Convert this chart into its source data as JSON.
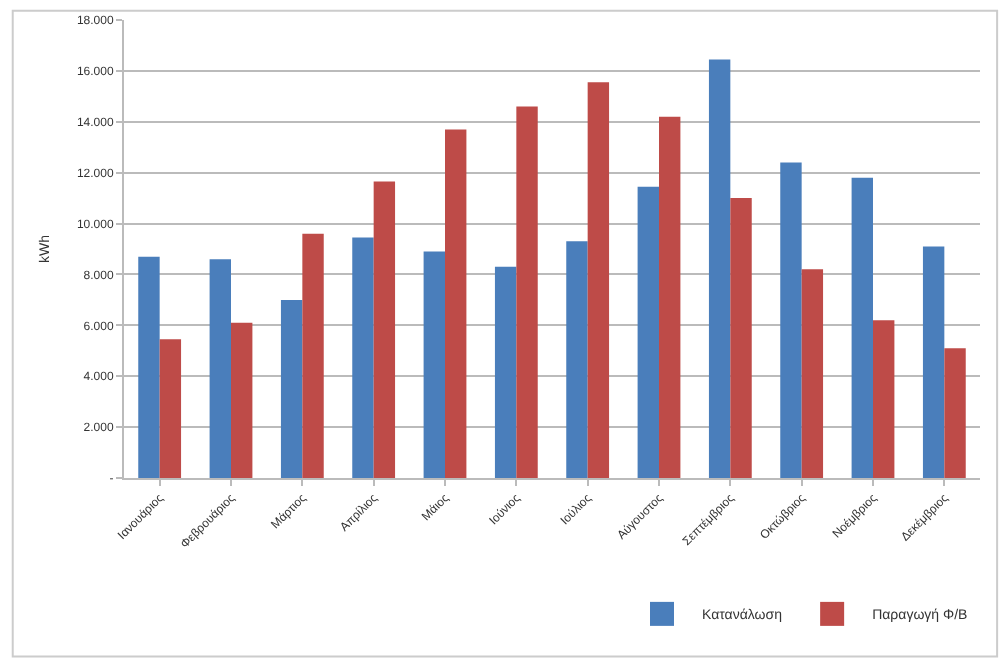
{
  "chart_data": {
    "type": "bar",
    "ylabel": "kWh",
    "categories": [
      "Ιανουάριος",
      "Φεβρουάριος",
      "Μάρτιος",
      "Απρίλιος",
      "Μάιος",
      "Ιούνιος",
      "Ιούλιος",
      "Αύγουστος",
      "Σεπτέμβριος",
      "Οκτώβριος",
      "Νοέμβριος",
      "Δεκέμβριος"
    ],
    "series": [
      {
        "name": "Κατανάλωση",
        "color": "#4a7ebb",
        "values": [
          8700,
          8600,
          7000,
          9450,
          8900,
          8300,
          9300,
          11450,
          16450,
          12400,
          11800,
          9100
        ]
      },
      {
        "name": "Παραγωγή Φ/Β",
        "color": "#be4b48",
        "values": [
          5450,
          6100,
          9600,
          11650,
          13700,
          14600,
          15550,
          14200,
          11000,
          8200,
          6200,
          5100
        ]
      }
    ],
    "ylim": [
      0,
      18000
    ],
    "yticks": [
      {
        "value": 0,
        "label": "-"
      },
      {
        "value": 2000,
        "label": "2.000"
      },
      {
        "value": 4000,
        "label": "4.000"
      },
      {
        "value": 6000,
        "label": "6.000"
      },
      {
        "value": 8000,
        "label": "8.000"
      },
      {
        "value": 10000,
        "label": "10.000"
      },
      {
        "value": 12000,
        "label": "12.000"
      },
      {
        "value": 14000,
        "label": "14.000"
      },
      {
        "value": 16000,
        "label": "16.000"
      },
      {
        "value": 18000,
        "label": "18.000"
      }
    ],
    "grid": "y",
    "legend": "bottom right"
  }
}
